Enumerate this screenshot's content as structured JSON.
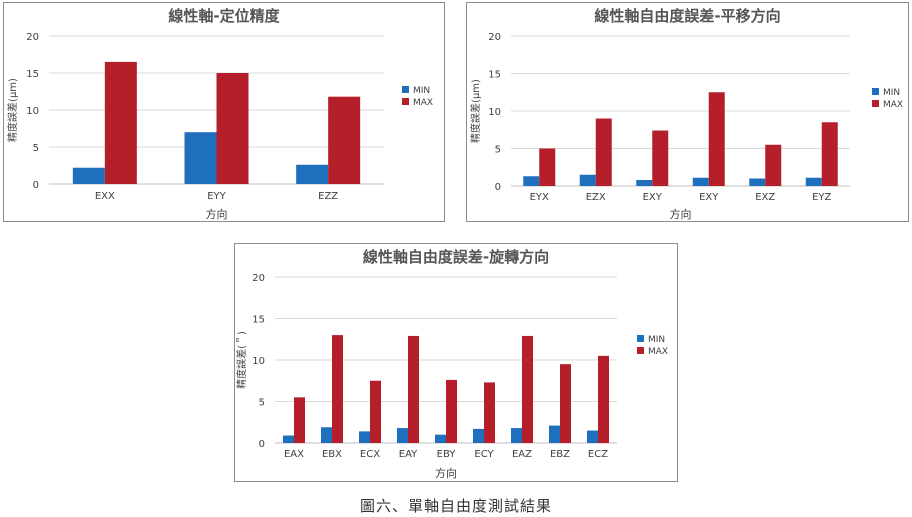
{
  "chart_data": [
    {
      "type": "bar",
      "title": "線性軸-定位精度",
      "xlabel": "方向",
      "ylabel": "精度誤差(µm)",
      "ylim": [
        0,
        20
      ],
      "yticks": [
        "0",
        "5",
        "10",
        "15",
        "20"
      ],
      "grid": true,
      "legend": "right",
      "categories": [
        "EXX",
        "EYY",
        "EZZ"
      ],
      "series": [
        {
          "name": "MIN",
          "color": "#1f6fbf",
          "values": [
            2.2,
            7.0,
            2.6
          ]
        },
        {
          "name": "MAX",
          "color": "#b51f2a",
          "values": [
            16.5,
            15.0,
            11.8
          ]
        }
      ]
    },
    {
      "type": "bar",
      "title": "線性軸自由度誤差-平移方向",
      "xlabel": "方向",
      "ylabel": "精度誤差(µm)",
      "ylim": [
        0,
        20
      ],
      "yticks": [
        "0",
        "5",
        "10",
        "15",
        "20"
      ],
      "grid": true,
      "legend": "right",
      "categories": [
        "EYX",
        "EZX",
        "EXY",
        "EXY",
        "EXZ",
        "EYZ"
      ],
      "series": [
        {
          "name": "MIN",
          "color": "#1f6fbf",
          "values": [
            1.3,
            1.5,
            0.8,
            1.1,
            1.0,
            1.1
          ]
        },
        {
          "name": "MAX",
          "color": "#b51f2a",
          "values": [
            5.0,
            9.0,
            7.4,
            12.5,
            5.5,
            8.5
          ]
        }
      ]
    },
    {
      "type": "bar",
      "title": "線性軸自由度誤差-旋轉方向",
      "xlabel": "方向",
      "ylabel": "精度誤差(＂)",
      "ylim": [
        0,
        20
      ],
      "yticks": [
        "0",
        "5",
        "10",
        "15",
        "20"
      ],
      "grid": true,
      "legend": "right",
      "categories": [
        "EAX",
        "EBX",
        "ECX",
        "EAY",
        "EBY",
        "ECY",
        "EAZ",
        "EBZ",
        "ECZ"
      ],
      "series": [
        {
          "name": "MIN",
          "color": "#1f6fbf",
          "values": [
            0.9,
            1.9,
            1.4,
            1.8,
            1.0,
            1.7,
            1.8,
            2.1,
            1.5
          ]
        },
        {
          "name": "MAX",
          "color": "#b51f2a",
          "values": [
            5.5,
            13.0,
            7.5,
            12.9,
            7.6,
            7.3,
            12.9,
            9.5,
            10.5
          ]
        }
      ]
    }
  ],
  "figure_caption": "圖六、單軸自由度測試結果"
}
